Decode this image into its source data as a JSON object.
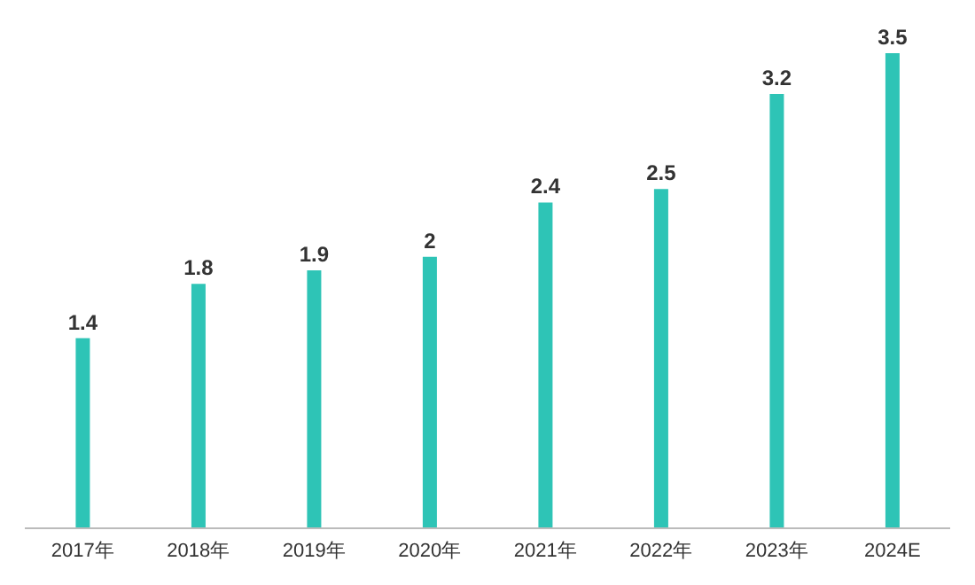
{
  "chart_data": {
    "type": "bar",
    "categories": [
      "2017年",
      "2018年",
      "2019年",
      "2020年",
      "2021年",
      "2022年",
      "2023年",
      "2024E"
    ],
    "values": [
      1.4,
      1.8,
      1.9,
      2,
      2.4,
      2.5,
      3.2,
      3.5
    ],
    "color": "#2ec4b6",
    "data_labels": true,
    "grid": false,
    "legend": false
  }
}
